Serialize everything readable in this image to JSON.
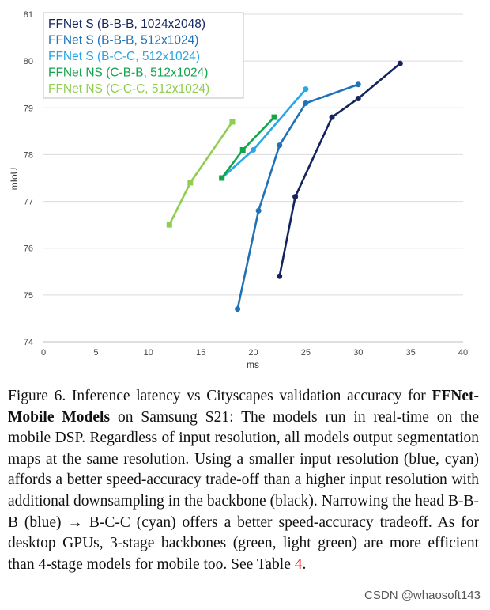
{
  "chart_data": {
    "type": "line",
    "title": "",
    "xlabel": "ms",
    "ylabel": "mIoU",
    "xlim": [
      0,
      40
    ],
    "ylim": [
      74,
      81
    ],
    "x_ticks": [
      "0",
      "5",
      "10",
      "15",
      "20",
      "25",
      "30",
      "35",
      "40"
    ],
    "y_ticks": [
      "74",
      "75",
      "76",
      "77",
      "78",
      "79",
      "80",
      "81"
    ],
    "grid": "horizontal",
    "legend_position": "top-left",
    "series": [
      {
        "name": "FFNet S (B-B-B, 1024x2048)",
        "color": "#14245e",
        "marker": "circle",
        "points": [
          [
            22.5,
            75.4
          ],
          [
            24.0,
            77.1
          ],
          [
            27.5,
            78.8
          ],
          [
            30.0,
            79.2
          ],
          [
            34.0,
            79.95
          ]
        ]
      },
      {
        "name": "FFNet S (B-B-B, 512x1024)",
        "color": "#1f72b8",
        "marker": "circle",
        "points": [
          [
            18.5,
            74.7
          ],
          [
            20.5,
            76.8
          ],
          [
            22.5,
            78.2
          ],
          [
            25.0,
            79.1
          ],
          [
            30.0,
            79.5
          ]
        ]
      },
      {
        "name": "FFNet S (B-C-C, 512x1024)",
        "color": "#27a7e4",
        "marker": "circle",
        "points": [
          [
            17.0,
            77.5
          ],
          [
            20.0,
            78.1
          ],
          [
            25.0,
            79.4
          ]
        ]
      },
      {
        "name": "FFNet NS (C-B-B, 512x1024)",
        "color": "#13a54c",
        "marker": "square",
        "points": [
          [
            17.0,
            77.5
          ],
          [
            19.0,
            78.1
          ],
          [
            22.0,
            78.8
          ]
        ]
      },
      {
        "name": "FFNet NS (C-C-C, 512x1024)",
        "color": "#8fce4e",
        "marker": "square",
        "points": [
          [
            12.0,
            76.5
          ],
          [
            14.0,
            77.4
          ],
          [
            18.0,
            78.7
          ]
        ]
      }
    ]
  },
  "caption": {
    "label": "Figure 6. Inference latency vs Cityscapes validation accuracy for ",
    "bold": "FFNet-Mobile Models",
    "body": " on Samsung S21: The models run in real-time on the mobile DSP. Regardless of input resolution, all models output segmentation maps at the same resolution. Using a smaller input resolution (blue, cyan) affords a better speed-accuracy trade-off than a higher input resolution with additional downsampling in the backbone (black). Narrowing the head B-B-B (blue) → B-C-C (cyan) offers a better speed-accuracy tradeoff. As for desktop GPUs, 3-stage backbones (green, light green) are more efficient than 4-stage models for mobile too. See Table ",
    "ref": "4",
    "end": "."
  },
  "watermark": "CSDN @whaosoft143"
}
